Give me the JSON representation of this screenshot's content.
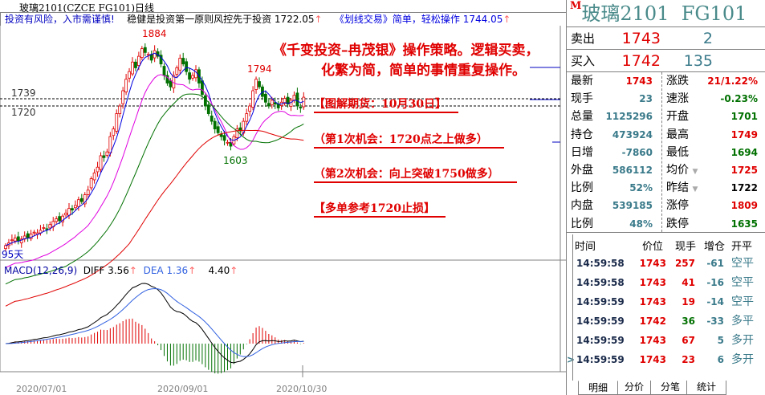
{
  "window": {
    "title": "玻璃2101(CZCE FG101)日线"
  },
  "info_bar": {
    "warning": "投资有风险，入市需谨慎!",
    "slogan1": "稳健是投资第一原则风控先于投资",
    "val1": "1722.05",
    "slogan2": "《划线交易》简单，轻松操作",
    "val2": "1744.05",
    "arrow": "↑"
  },
  "main_chart": {
    "high_label": "1884",
    "low_label": "1603",
    "peak2_label": "1794",
    "hline_labels": [
      "1739",
      "1720"
    ],
    "period_label": "95天",
    "colors": {
      "up": "#e00000",
      "down": "#007000",
      "ma1": "#0000e0",
      "ma2": "#e000e0",
      "ma3": "#007000",
      "ma4": "#e00000"
    }
  },
  "chart_data": {
    "type": "candlestick",
    "x_ticks": [
      "2020/07/01",
      "2020/09/01",
      "2020/10/30"
    ],
    "close": [
      1355,
      1362,
      1370,
      1375,
      1368,
      1372,
      1380,
      1376,
      1385,
      1390,
      1388,
      1395,
      1402,
      1398,
      1410,
      1418,
      1425,
      1420,
      1432,
      1440,
      1452,
      1448,
      1460,
      1475,
      1470,
      1488,
      1500,
      1530,
      1545,
      1560,
      1590,
      1585,
      1600,
      1640,
      1660,
      1700,
      1720,
      1760,
      1790,
      1810,
      1835,
      1820,
      1850,
      1870,
      1860,
      1855,
      1840,
      1865,
      1850,
      1830,
      1800,
      1780,
      1770,
      1800,
      1820,
      1845,
      1830,
      1810,
      1790,
      1800,
      1815,
      1780,
      1750,
      1720,
      1700,
      1680,
      1660,
      1650,
      1640,
      1630,
      1625,
      1615,
      1640,
      1660,
      1655,
      1680,
      1700,
      1720,
      1760,
      1790,
      1770,
      1745,
      1730,
      1720,
      1735,
      1725,
      1715,
      1730,
      1740,
      1725,
      1735,
      1748,
      1720,
      1715,
      1743
    ]
  },
  "annotations": {
    "headline1": "《千变投资–冉茂银》操作策略。逻辑买卖，",
    "headline2": "化繁为简，简单的事情重复操作。",
    "n1": "【图解期货：10月30日】",
    "n2": "（第1次机会：1720点之上做多）",
    "n3": "（第2次机会：向上突破1750做多）",
    "n4": "【多单参考1720止损】"
  },
  "macd": {
    "label": "MACD(12,26,9)",
    "diff": "DIFF 3.56",
    "dea": "DEA 1.36",
    "macd": "4.40",
    "arrow": "↑"
  },
  "quote": {
    "m": "M",
    "name": "玻璃2101",
    "code": "FG101",
    "sell": {
      "label": "卖出",
      "price": "1743",
      "vol": "2"
    },
    "buy": {
      "label": "买入",
      "price": "1742",
      "vol": "135"
    },
    "rows": [
      {
        "l1": "最新",
        "v1": "1743",
        "c1": "#e00000",
        "l2": "涨跌",
        "v2": "21/1.22%",
        "c2": "#e00000"
      },
      {
        "l1": "现手",
        "v1": "23",
        "c1": "#3a7a8a",
        "l2": "速涨",
        "v2": "-0.23%",
        "c2": "#007000"
      },
      {
        "l1": "总量",
        "v1": "1125296",
        "c1": "#3a7a8a",
        "l2": "开盘",
        "v2": "1701",
        "c2": "#007000"
      },
      {
        "l1": "持仓",
        "v1": "473924",
        "c1": "#3a7a8a",
        "l2": "最高",
        "v2": "1749",
        "c2": "#e00000"
      },
      {
        "l1": "日增",
        "v1": "-7860",
        "c1": "#3a7a8a",
        "l2": "最低",
        "v2": "1694",
        "c2": "#007000"
      },
      {
        "l1": "外盘",
        "v1": "586112",
        "c1": "#3a7a8a",
        "l2": "均价",
        "v2": "1725",
        "c2": "#e00000",
        "tri": "▼"
      },
      {
        "l1": "比例",
        "v1": "52%",
        "c1": "#3a7a8a",
        "l2": "昨结",
        "v2": "1722",
        "c2": "#000000",
        "tri": "▼"
      },
      {
        "l1": "内盘",
        "v1": "539185",
        "c1": "#3a7a8a",
        "l2": "涨停",
        "v2": "1809",
        "c2": "#e00000"
      },
      {
        "l1": "比例",
        "v1": "48%",
        "c1": "#3a7a8a",
        "l2": "跌停",
        "v2": "1635",
        "c2": "#007000"
      }
    ]
  },
  "ticks": {
    "headers": [
      "时间",
      "价位",
      "现手",
      "增仓",
      "开平"
    ],
    "rows": [
      {
        "time": "14:59:58",
        "price": "1743",
        "vol": "257",
        "vc": "#e00000",
        "oi": "-61",
        "type": "空平"
      },
      {
        "time": "14:59:58",
        "price": "1743",
        "vol": "41",
        "vc": "#e00000",
        "oi": "-16",
        "type": "空平"
      },
      {
        "time": "14:59:59",
        "price": "1743",
        "vol": "19",
        "vc": "#e00000",
        "oi": "-14",
        "type": "空平"
      },
      {
        "time": "14:59:59",
        "price": "1742",
        "vol": "36",
        "vc": "#007000",
        "oi": "-33",
        "type": "多平"
      },
      {
        "time": "14:59:59",
        "price": "1743",
        "vol": "67",
        "vc": "#e00000",
        "oi": "5",
        "type": "多开"
      },
      {
        "time": "14:59:59",
        "price": "1743",
        "vol": "23",
        "vc": "#e00000",
        "oi": "6",
        "type": "多开",
        "cursor": ">"
      }
    ]
  },
  "tabs": [
    "明细",
    "分价",
    "分笔",
    "统计"
  ]
}
